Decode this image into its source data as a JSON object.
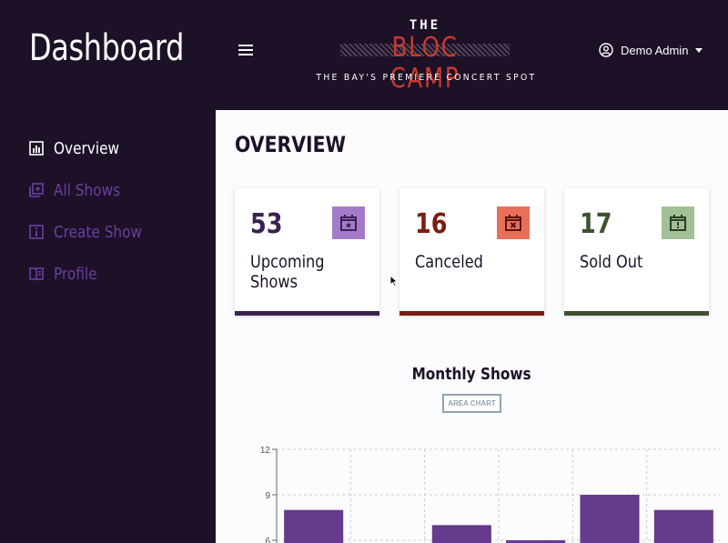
{
  "sidebar": {
    "title": "Dashboard",
    "items": [
      {
        "label": "Overview",
        "active": true,
        "icon": "chart-icon"
      },
      {
        "label": "All Shows",
        "active": false,
        "icon": "add-library-icon"
      },
      {
        "label": "Create Show",
        "active": false,
        "icon": "info-box-icon"
      },
      {
        "label": "Profile",
        "active": false,
        "icon": "profile-card-icon"
      }
    ]
  },
  "header": {
    "logo": {
      "the": "THE",
      "main": "BLOC CAMP",
      "tagline": "THE BAY'S PREMIERE CONCERT SPOT"
    },
    "user": {
      "name": "Demo Admin"
    }
  },
  "main": {
    "title": "OVERVIEW",
    "cards": [
      {
        "value": "53",
        "label": "Upcoming Shows",
        "color": "#3b2150",
        "badge_bg": "#a47bc9",
        "icon": "calendar-star-icon"
      },
      {
        "value": "16",
        "label": "Canceled",
        "color": "#7a1d10",
        "badge_bg": "#e8705a",
        "icon": "calendar-x-icon"
      },
      {
        "value": "17",
        "label": "Sold Out",
        "color": "#3e5232",
        "badge_bg": "#a2c096",
        "icon": "calendar-alert-icon"
      }
    ],
    "chart_title": "Monthly Shows",
    "chart_toggle": "AREA CHART"
  },
  "chart_data": {
    "type": "bar",
    "title": "Monthly Shows",
    "categories": [
      "",
      "",
      "",
      "",
      "",
      ""
    ],
    "values": [
      8,
      0,
      7,
      6,
      9,
      8
    ],
    "yticks": [
      12,
      9,
      6
    ],
    "ylim": [
      0,
      12
    ],
    "grid": true,
    "bar_color": "#663a8c"
  }
}
